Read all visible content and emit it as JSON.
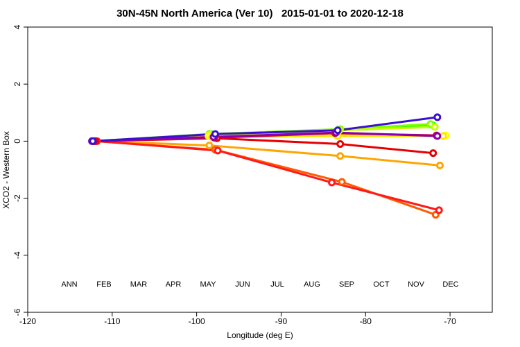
{
  "chart_data": {
    "type": "line",
    "title": "30N-45N North America (Ver 10)   2015-01-01 to 2020-12-18",
    "x_label": "Longitude (deg E)",
    "y_label": "XCO2 - Western Box",
    "xlim": [
      -120,
      -65
    ],
    "ylim": [
      -6,
      4
    ],
    "xticks": [
      -120,
      -110,
      -100,
      -90,
      -80,
      -70
    ],
    "yticks": [
      -6,
      -4,
      -2,
      0,
      2,
      4
    ],
    "grid": false,
    "legend": "bottom",
    "series": [
      {
        "name": "ANN",
        "color": "#00ff00",
        "x": [
          -112.2,
          -98.3,
          -83.2,
          -72.0
        ],
        "values": [
          0,
          0.24,
          0.4,
          0.55
        ]
      },
      {
        "name": "FEB",
        "color": "#7fff00",
        "x": [
          -112.0,
          -98.5,
          -83.0,
          -72.3
        ],
        "values": [
          0,
          0.25,
          0.42,
          0.6
        ]
      },
      {
        "name": "MAR",
        "color": "#c8ff00",
        "x": [
          -112.1,
          -98.4,
          -83.1,
          -71.8
        ],
        "values": [
          0,
          0.22,
          0.38,
          0.5
        ]
      },
      {
        "name": "APR",
        "color": "#ffff00",
        "x": [
          -111.9,
          -98.6,
          -83.4,
          -70.5
        ],
        "values": [
          0,
          0.18,
          0.2,
          0.2
        ]
      },
      {
        "name": "MAY",
        "color": "#ffe600",
        "x": [
          -112.0,
          -98.2,
          -83.3,
          -70.8
        ],
        "values": [
          0,
          0.15,
          0.18,
          0.18
        ]
      },
      {
        "name": "JUN",
        "color": "#ffa500",
        "x": [
          -112.0,
          -98.5,
          -83.0,
          -71.2
        ],
        "values": [
          0,
          -0.15,
          -0.52,
          -0.85
        ]
      },
      {
        "name": "JUL",
        "color": "#ff5a00",
        "x": [
          -112.0,
          -97.8,
          -82.8,
          -71.7
        ],
        "values": [
          0,
          -0.3,
          -1.43,
          -2.58
        ]
      },
      {
        "name": "AUG",
        "color": "#ff1a1a",
        "x": [
          -111.8,
          -97.5,
          -84.0,
          -71.3
        ],
        "values": [
          0,
          -0.33,
          -1.45,
          -2.42
        ]
      },
      {
        "name": "SEP",
        "color": "#e60000",
        "x": [
          -112.0,
          -97.6,
          -83.0,
          -72.0
        ],
        "values": [
          0,
          0.1,
          -0.1,
          -0.42
        ]
      },
      {
        "name": "OCT",
        "color": "#cc0040",
        "x": [
          -112.2,
          -97.9,
          -83.6,
          -71.6
        ],
        "values": [
          0,
          0.12,
          0.28,
          0.2
        ]
      },
      {
        "name": "NOV",
        "color": "#8a00b0",
        "x": [
          -112.4,
          -98.0,
          -83.5,
          -71.5
        ],
        "values": [
          0,
          0.15,
          0.3,
          0.18
        ]
      },
      {
        "name": "DEC",
        "color": "#3a10d0",
        "x": [
          -112.3,
          -97.8,
          -83.3,
          -71.5
        ],
        "values": [
          0,
          0.25,
          0.38,
          0.84
        ]
      }
    ]
  }
}
